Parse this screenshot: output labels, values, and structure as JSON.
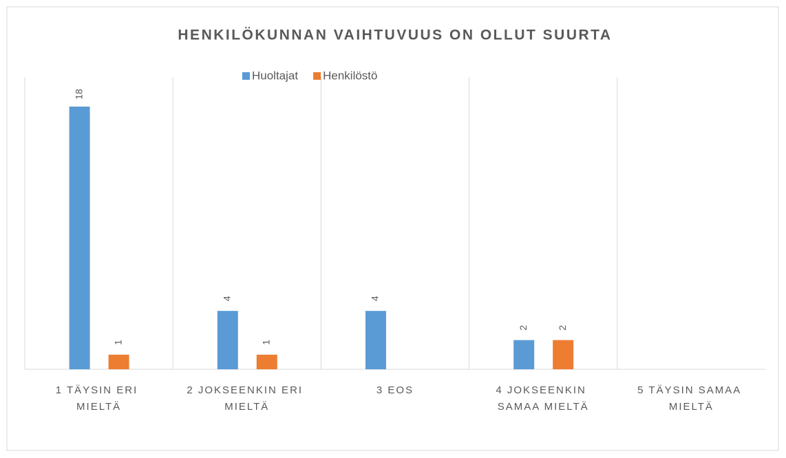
{
  "chart_data": {
    "type": "bar",
    "title": "HENKILÖKUNNAN VAIHTUVUUS ON OLLUT SUURTA",
    "categories": [
      "1 TÄYSIN ERI MIELTÄ",
      "2 JOKSEENKIN ERI MIELTÄ",
      "3 EOS",
      "4 JOKSEENKIN SAMAA MIELTÄ",
      "5 TÄYSIN SAMAA MIELTÄ"
    ],
    "series": [
      {
        "name": "Huoltajat",
        "color": "#5b9bd5",
        "values": [
          18,
          4,
          4,
          2,
          null
        ]
      },
      {
        "name": "Henkilöstö",
        "color": "#ed7d31",
        "values": [
          1,
          1,
          null,
          2,
          null
        ]
      }
    ],
    "legend": "top",
    "grid": true
  }
}
